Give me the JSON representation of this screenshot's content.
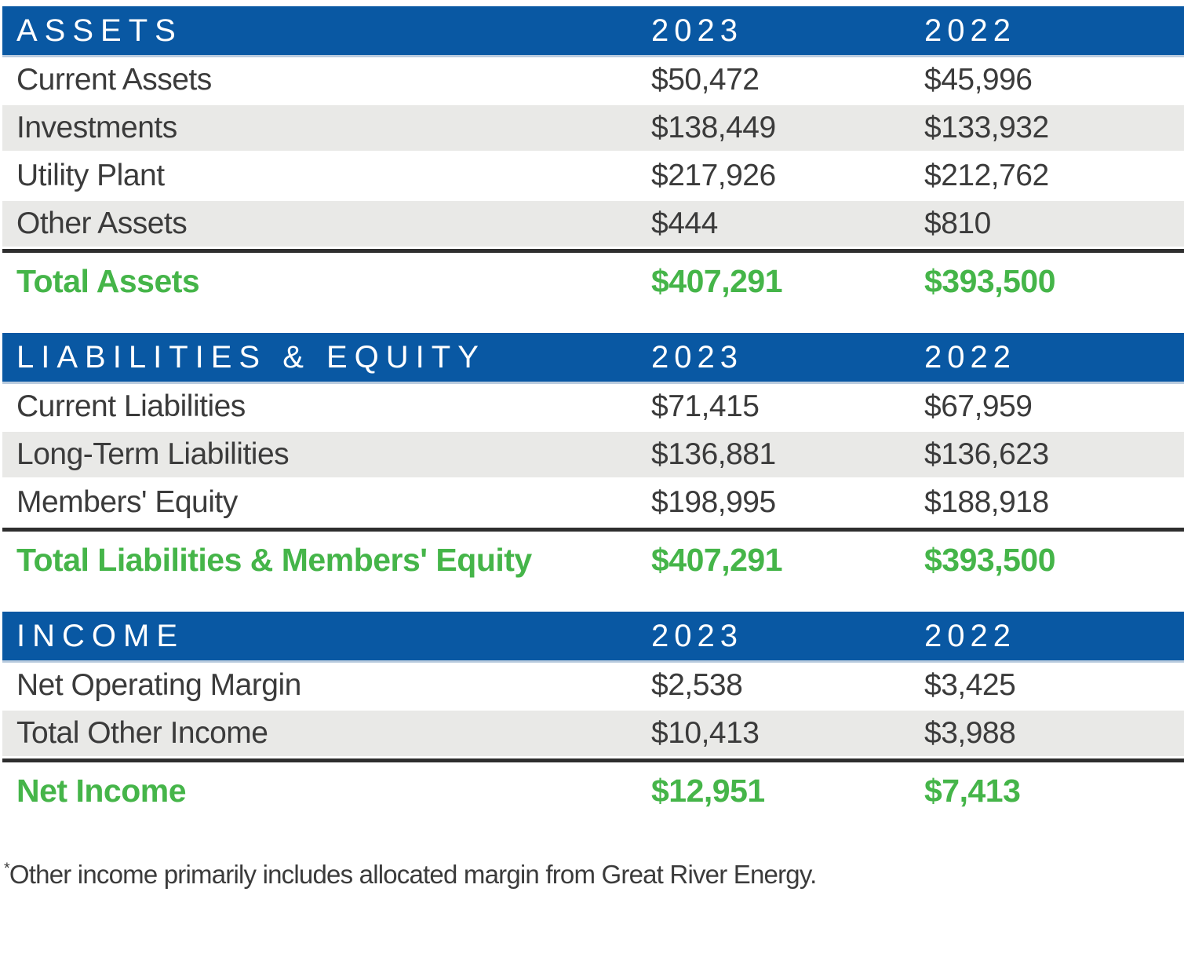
{
  "colors": {
    "header_blue": "#0958A3",
    "alt_row_gray": "#E9E9E7",
    "total_green": "#45B549",
    "body_text": "#3B3B3B",
    "divider_dark": "#2E2E2E"
  },
  "sections": [
    {
      "title": "ASSETS",
      "columns": [
        "2023",
        "2022"
      ],
      "rows": [
        {
          "label": "Current Assets",
          "y2023": "$50,472",
          "y2022": "$45,996"
        },
        {
          "label": "Investments",
          "y2023": "$138,449",
          "y2022": "$133,932"
        },
        {
          "label": "Utility Plant",
          "y2023": "$217,926",
          "y2022": "$212,762"
        },
        {
          "label": "Other Assets",
          "y2023": "$444",
          "y2022": "$810"
        }
      ],
      "total": {
        "label": "Total Assets",
        "y2023": "$407,291",
        "y2022": "$393,500"
      }
    },
    {
      "title": "LIABILITIES & EQUITY",
      "columns": [
        "2023",
        "2022"
      ],
      "rows": [
        {
          "label": "Current Liabilities",
          "y2023": "$71,415",
          "y2022": "$67,959"
        },
        {
          "label": "Long-Term Liabilities",
          "y2023": "$136,881",
          "y2022": "$136,623"
        },
        {
          "label": "Members' Equity",
          "y2023": "$198,995",
          "y2022": "$188,918"
        }
      ],
      "total": {
        "label": "Total Liabilities & Members' Equity",
        "y2023": "$407,291",
        "y2022": "$393,500"
      }
    },
    {
      "title": "INCOME",
      "columns": [
        "2023",
        "2022"
      ],
      "rows": [
        {
          "label": "Net Operating Margin",
          "y2023": "$2,538",
          "y2022": "$3,425"
        },
        {
          "label": "Total Other Income",
          "y2023": "$10,413",
          "y2022": "$3,988"
        }
      ],
      "total": {
        "label": "Net Income",
        "y2023": "$12,951",
        "y2022": "$7,413"
      }
    }
  ],
  "footnote": {
    "marker": "*",
    "text": "Other income primarily includes allocated margin from Great River Energy."
  }
}
